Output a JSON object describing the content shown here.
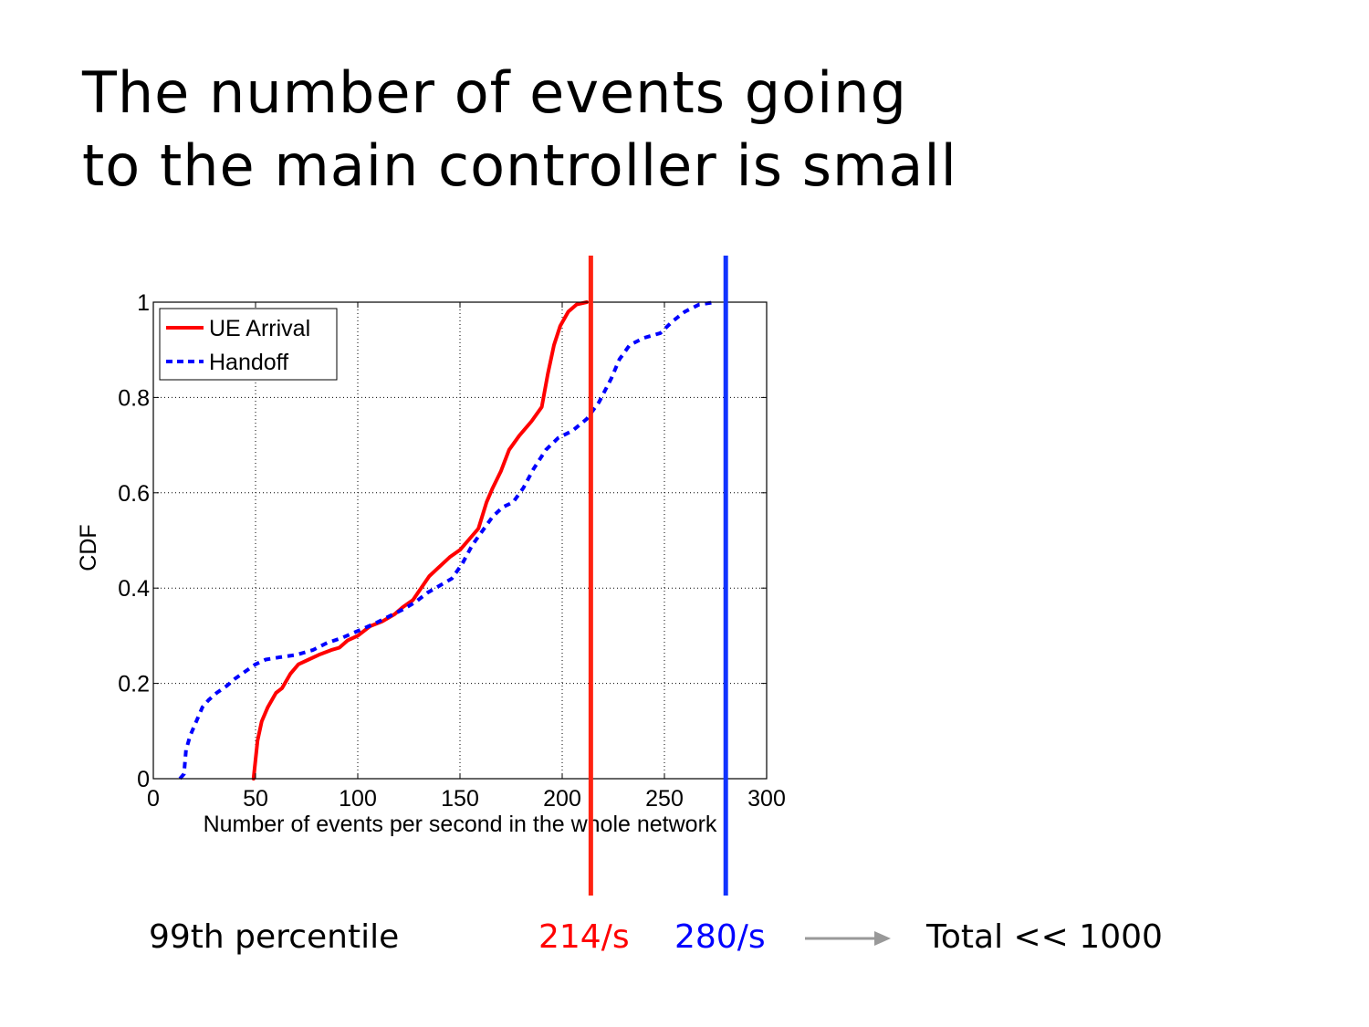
{
  "slide": {
    "title_lines": [
      "The number of events going",
      "to the main controller is small"
    ]
  },
  "chart_data": {
    "type": "line",
    "title": "",
    "xlabel": "Number of events per second in the whole network",
    "ylabel": "CDF",
    "xlim": [
      0,
      300
    ],
    "ylim": [
      0,
      1
    ],
    "xticks": [
      0,
      50,
      100,
      150,
      200,
      250,
      300
    ],
    "yticks": [
      0,
      0.2,
      0.4,
      0.6,
      0.8,
      1
    ],
    "ytick_labels": [
      "0",
      "0.2",
      "0.4",
      "0.6",
      "0.8",
      "1"
    ],
    "grid": true,
    "legend_position": "top-left",
    "series": [
      {
        "name": "UE Arrival",
        "color": "#ff0000",
        "style": "solid",
        "points": [
          [
            49,
            0
          ],
          [
            50,
            0.04
          ],
          [
            51,
            0.08
          ],
          [
            53,
            0.12
          ],
          [
            56,
            0.15
          ],
          [
            60,
            0.18
          ],
          [
            63,
            0.19
          ],
          [
            67,
            0.22
          ],
          [
            71,
            0.24
          ],
          [
            76,
            0.25
          ],
          [
            81,
            0.26
          ],
          [
            87,
            0.27
          ],
          [
            91,
            0.275
          ],
          [
            95,
            0.29
          ],
          [
            100,
            0.3
          ],
          [
            106,
            0.32
          ],
          [
            112,
            0.33
          ],
          [
            118,
            0.345
          ],
          [
            122,
            0.36
          ],
          [
            127,
            0.375
          ],
          [
            131,
            0.4
          ],
          [
            135,
            0.425
          ],
          [
            140,
            0.445
          ],
          [
            145,
            0.465
          ],
          [
            150,
            0.48
          ],
          [
            154,
            0.5
          ],
          [
            159,
            0.525
          ],
          [
            163,
            0.58
          ],
          [
            166,
            0.61
          ],
          [
            170,
            0.645
          ],
          [
            174,
            0.69
          ],
          [
            179,
            0.72
          ],
          [
            185,
            0.75
          ],
          [
            190,
            0.78
          ],
          [
            193,
            0.85
          ],
          [
            196,
            0.91
          ],
          [
            199,
            0.95
          ],
          [
            203,
            0.98
          ],
          [
            207,
            0.995
          ],
          [
            212,
            1.0
          ]
        ]
      },
      {
        "name": "Handoff",
        "color": "#0000ff",
        "style": "dashed",
        "points": [
          [
            13,
            0
          ],
          [
            15,
            0.01
          ],
          [
            16,
            0.06
          ],
          [
            18,
            0.09
          ],
          [
            21,
            0.12
          ],
          [
            24,
            0.15
          ],
          [
            27,
            0.165
          ],
          [
            31,
            0.18
          ],
          [
            36,
            0.195
          ],
          [
            40,
            0.21
          ],
          [
            45,
            0.225
          ],
          [
            50,
            0.24
          ],
          [
            55,
            0.25
          ],
          [
            62,
            0.255
          ],
          [
            70,
            0.26
          ],
          [
            78,
            0.27
          ],
          [
            85,
            0.285
          ],
          [
            92,
            0.295
          ],
          [
            100,
            0.31
          ],
          [
            108,
            0.325
          ],
          [
            115,
            0.34
          ],
          [
            122,
            0.355
          ],
          [
            128,
            0.37
          ],
          [
            134,
            0.39
          ],
          [
            140,
            0.405
          ],
          [
            146,
            0.42
          ],
          [
            151,
            0.45
          ],
          [
            156,
            0.49
          ],
          [
            161,
            0.52
          ],
          [
            166,
            0.55
          ],
          [
            171,
            0.57
          ],
          [
            176,
            0.58
          ],
          [
            181,
            0.61
          ],
          [
            186,
            0.65
          ],
          [
            192,
            0.69
          ],
          [
            198,
            0.715
          ],
          [
            205,
            0.73
          ],
          [
            212,
            0.755
          ],
          [
            218,
            0.79
          ],
          [
            224,
            0.84
          ],
          [
            228,
            0.88
          ],
          [
            233,
            0.91
          ],
          [
            240,
            0.925
          ],
          [
            248,
            0.935
          ],
          [
            254,
            0.96
          ],
          [
            260,
            0.98
          ],
          [
            267,
            0.995
          ],
          [
            275,
            1.0
          ]
        ]
      }
    ],
    "percentile_markers": [
      {
        "name": "UE Arrival 99th percentile",
        "x": 214,
        "color": "#ff2211"
      },
      {
        "name": "Handoff 99th percentile",
        "x": 280,
        "color": "#1133ff"
      }
    ]
  },
  "footer": {
    "label": "99th percentile",
    "ue_value": "214/s",
    "ue_color": "#ff0000",
    "handoff_value": "280/s",
    "handoff_color": "#0000ff",
    "arrow_icon": "right-arrow-icon",
    "arrow_color": "#999999",
    "total": "Total << 1000"
  }
}
